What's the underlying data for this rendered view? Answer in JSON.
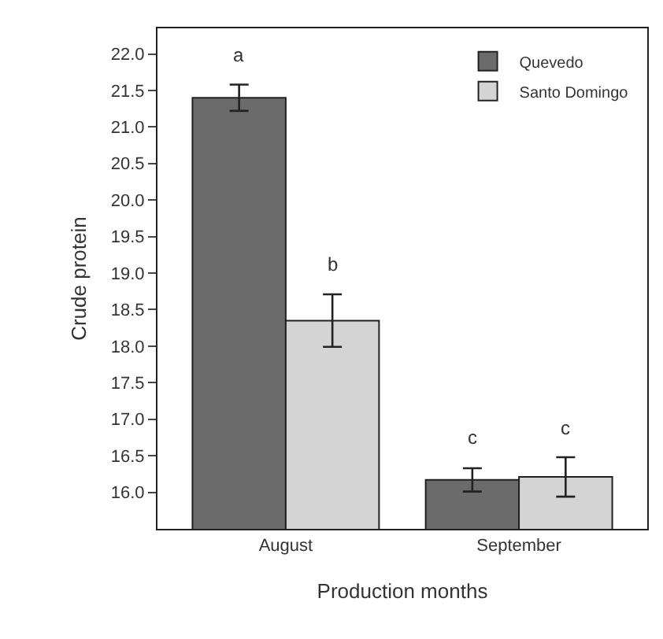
{
  "chart_data": {
    "type": "bar",
    "xlabel": "Production months",
    "ylabel": "Crude protein",
    "categories": [
      "August",
      "September"
    ],
    "series": [
      {
        "name": "Quevedo",
        "color": "#6b6b6b",
        "values": [
          21.4,
          16.17
        ],
        "errors": [
          0.18,
          0.16
        ]
      },
      {
        "name": "Santo Domingo",
        "color": "#d4d4d4",
        "values": [
          18.35,
          16.21
        ],
        "errors": [
          0.36,
          0.27
        ]
      }
    ],
    "ylim": [
      15.5,
      22.35
    ],
    "yticks": [
      {
        "value": 16,
        "label": "16.0"
      },
      16.5,
      {
        "value": 17,
        "label": "17.0"
      },
      17.5,
      {
        "value": 18,
        "label": "18.0"
      },
      18.5,
      {
        "value": 19,
        "label": "19.0"
      },
      19.5,
      {
        "value": 20,
        "label": "20.0"
      },
      20.5,
      {
        "value": 21,
        "label": "21.0"
      },
      21.5,
      {
        "value": 22,
        "label": "22.0"
      }
    ],
    "annotations": [
      "a",
      "b",
      "c",
      "c"
    ],
    "grid": false,
    "legend": "top right"
  }
}
